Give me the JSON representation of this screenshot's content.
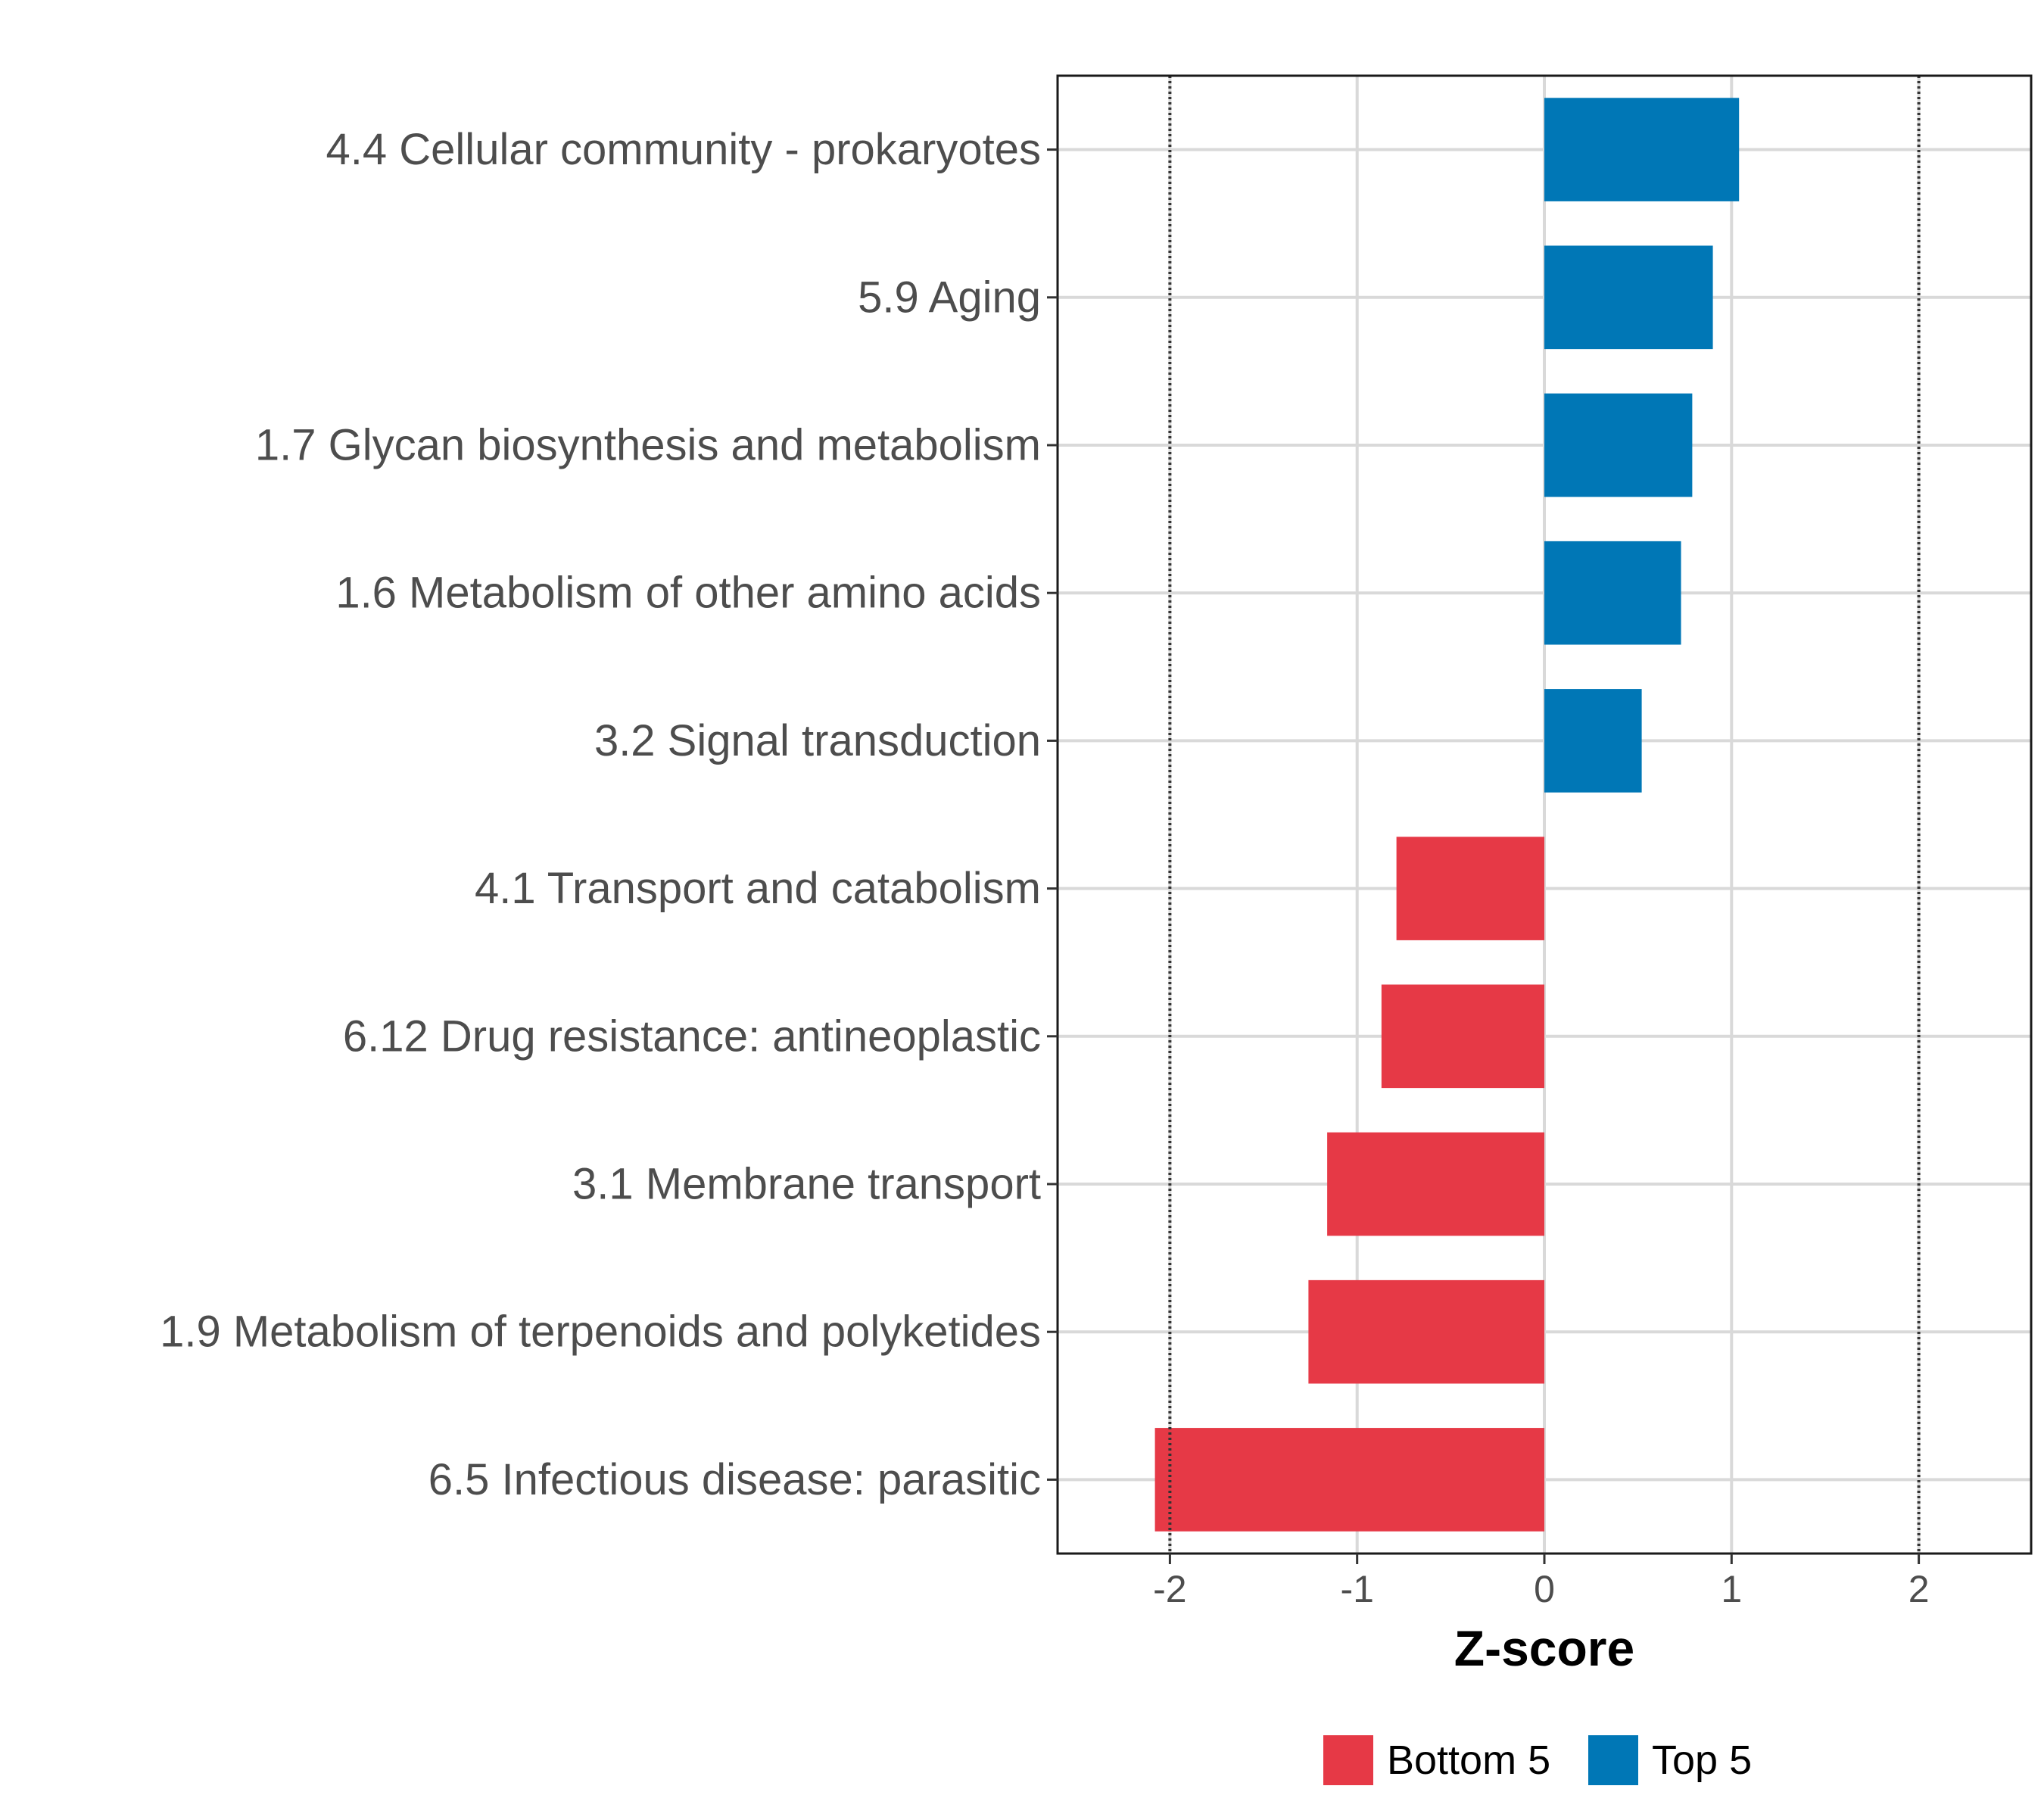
{
  "chart_data": {
    "type": "bar",
    "orientation": "horizontal",
    "xlabel": "Z-score",
    "xlim": [
      -2.6,
      2.6
    ],
    "xticks": [
      -2,
      -1,
      0,
      1,
      2
    ],
    "xtick_labels": [
      "-2",
      "-1",
      "0",
      "1",
      "2"
    ],
    "reference_lines": [
      -2,
      2
    ],
    "grid": true,
    "categories": [
      "4.4 Cellular community - prokaryotes",
      "5.9 Aging",
      "1.7 Glycan biosynthesis and metabolism",
      "1.6 Metabolism of other amino acids",
      "3.2 Signal transduction",
      "4.1 Transport and catabolism",
      "6.12 Drug resistance: antineoplastic",
      "3.1 Membrane transport",
      "1.9 Metabolism of terpenoids and polyketides",
      "6.5 Infectious disease: parasitic"
    ],
    "values": [
      1.04,
      0.9,
      0.79,
      0.73,
      0.52,
      -0.79,
      -0.87,
      -1.16,
      -1.26,
      -2.08
    ],
    "groups": [
      "Top 5",
      "Top 5",
      "Top 5",
      "Top 5",
      "Top 5",
      "Bottom 5",
      "Bottom 5",
      "Bottom 5",
      "Bottom 5",
      "Bottom 5"
    ],
    "legend": [
      {
        "label": "Bottom 5",
        "color": "#e63946"
      },
      {
        "label": "Top 5",
        "color": "#0077b6"
      }
    ],
    "legend_position": "bottom"
  }
}
